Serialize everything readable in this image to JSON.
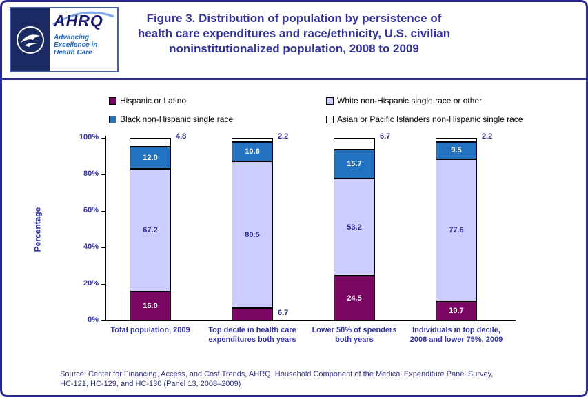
{
  "colors": {
    "frame": "#2B2B94",
    "title_text": "#333399",
    "axis_text": "#3333A6",
    "source_text": "#303080",
    "hispanic": "#7B0663",
    "white_other": "#CCCCFF",
    "black": "#2372C0",
    "asian": "#FFFFFF"
  },
  "header": {
    "title_lines": [
      "Figure 3. Distribution of population by persistence of",
      "health care expenditures and race/ethnicity, U.S. civilian",
      "noninstitutionalized population, 2008 to 2009"
    ],
    "logo": {
      "name": "AHRQ",
      "tagline_lines": [
        "Advancing",
        "Excellence in",
        "Health Care"
      ]
    }
  },
  "chart_data": {
    "type": "bar",
    "stacked": true,
    "title": "Figure 3. Distribution of population by persistence of health care expenditures and race/ethnicity, U.S. civilian noninstitutionalized population, 2008 to 2009",
    "ylabel": "Percentage",
    "ylim": [
      0,
      100
    ],
    "grid": false,
    "legend_position": "top",
    "yticks": [
      {
        "value": 0,
        "label": "0%"
      },
      {
        "value": 20,
        "label": "20%"
      },
      {
        "value": 40,
        "label": "40%"
      },
      {
        "value": 60,
        "label": "60%"
      },
      {
        "value": 80,
        "label": "80%"
      },
      {
        "value": 100,
        "label": "100%"
      }
    ],
    "categories": [
      [
        "Total population, 2009"
      ],
      [
        "Top decile in health care",
        "expenditures both years"
      ],
      [
        "Lower 50% of spenders",
        "both years"
      ],
      [
        "Individuals in top decile,",
        "2008 and lower 75%, 2009"
      ]
    ],
    "series": [
      {
        "name": "Hispanic or Latino",
        "color": "#7B0663",
        "label_color": "#FFFFFF",
        "values": [
          16.0,
          6.7,
          24.5,
          10.7
        ]
      },
      {
        "name": "White non-Hispanic single race or other",
        "color": "#CCCCFF",
        "label_color": "#2B2B8C",
        "values": [
          67.2,
          80.5,
          53.2,
          77.6
        ]
      },
      {
        "name": "Black non-Hispanic single race",
        "color": "#2372C0",
        "label_color": "#FFFFFF",
        "values": [
          12.0,
          10.6,
          15.7,
          9.5
        ]
      },
      {
        "name": "Asian or Pacific Islanders non-Hispanic single race",
        "color": "#FFFFFF",
        "label_color": "#22226E",
        "values": [
          4.8,
          2.2,
          6.7,
          2.2
        ]
      }
    ]
  },
  "footer": {
    "source_lines": [
      "Source: Center for Financing, Access, and Cost Trends, AHRQ,  Household Component of the Medical Expenditure Panel Survey,",
      "HC-121, HC-129, and HC-130 (Panel 13, 2008–2009)"
    ]
  }
}
